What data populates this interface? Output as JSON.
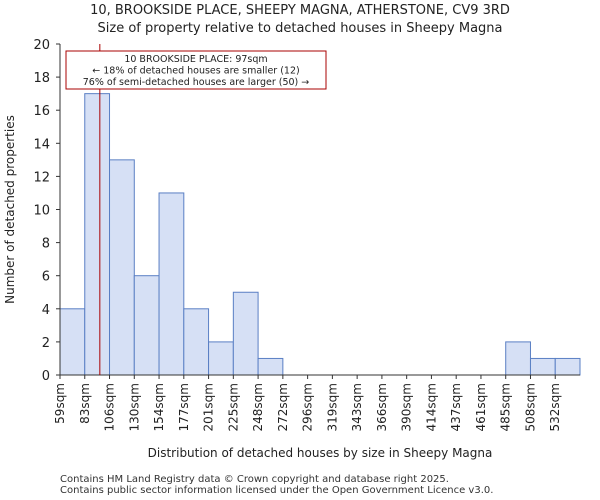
{
  "titles": {
    "line1": "10, BROOKSIDE PLACE, SHEEPY MAGNA, ATHERSTONE, CV9 3RD",
    "line2": "Size of property relative to detached houses in Sheepy Magna"
  },
  "footer": {
    "line1": "Contains HM Land Registry data © Crown copyright and database right 2025.",
    "line2": "Contains public sector information licensed under the Open Government Licence v3.0."
  },
  "chart_data": {
    "type": "bar",
    "title": "Size of property relative to detached houses in Sheepy Magna",
    "xlabel": "Distribution of detached houses by size in Sheepy Magna",
    "ylabel": "Number of detached properties",
    "categories": [
      "59sqm",
      "83sqm",
      "106sqm",
      "130sqm",
      "154sqm",
      "177sqm",
      "201sqm",
      "225sqm",
      "248sqm",
      "272sqm",
      "296sqm",
      "319sqm",
      "343sqm",
      "366sqm",
      "390sqm",
      "414sqm",
      "437sqm",
      "461sqm",
      "485sqm",
      "508sqm",
      "532sqm"
    ],
    "values": [
      4,
      17,
      13,
      6,
      11,
      4,
      2,
      5,
      1,
      0,
      0,
      0,
      0,
      0,
      0,
      0,
      0,
      0,
      2,
      1,
      1
    ],
    "ylim": [
      0,
      20
    ],
    "yticks": [
      0,
      2,
      4,
      6,
      8,
      10,
      12,
      14,
      16,
      18,
      20
    ],
    "bar_color": "#d6e0f5",
    "bar_edge": "#5a7fc4",
    "marker": {
      "value_sqm": 97,
      "color": "#aa0000",
      "annotation": [
        "10 BROOKSIDE PLACE: 97sqm",
        "← 18% of detached houses are smaller (12)",
        "76% of semi-detached houses are larger (50) →"
      ]
    }
  }
}
